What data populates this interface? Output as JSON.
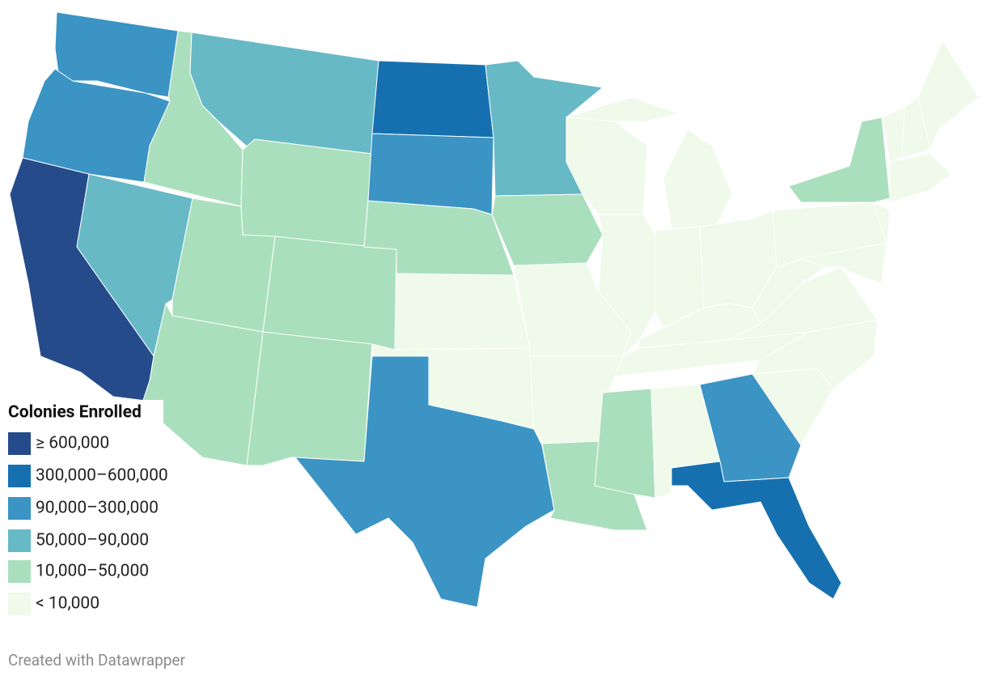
{
  "legend": {
    "title": "Colonies Enrolled",
    "items": [
      {
        "label": "≥ 600,000",
        "color": "#264b8b"
      },
      {
        "label": "300,000–600,000",
        "color": "#1670b0"
      },
      {
        "label": "90,000–300,000",
        "color": "#3b94c4"
      },
      {
        "label": "50,000–90,000",
        "color": "#67b9c6"
      },
      {
        "label": "10,000–50,000",
        "color": "#aadfbd"
      },
      {
        "label": "< 10,000",
        "color": "#effaea"
      }
    ]
  },
  "regions": [
    2,
    2,
    0,
    3,
    4,
    3,
    4,
    4,
    4,
    4,
    4,
    1,
    2,
    4,
    5,
    5,
    2,
    3,
    4,
    5,
    5,
    4,
    5,
    5,
    5,
    5,
    5,
    5,
    5,
    4,
    5,
    2,
    1,
    5,
    5,
    5,
    5,
    5,
    4,
    5,
    5,
    5,
    5,
    5,
    5
  ],
  "footer": "Created with Datawrapper"
}
